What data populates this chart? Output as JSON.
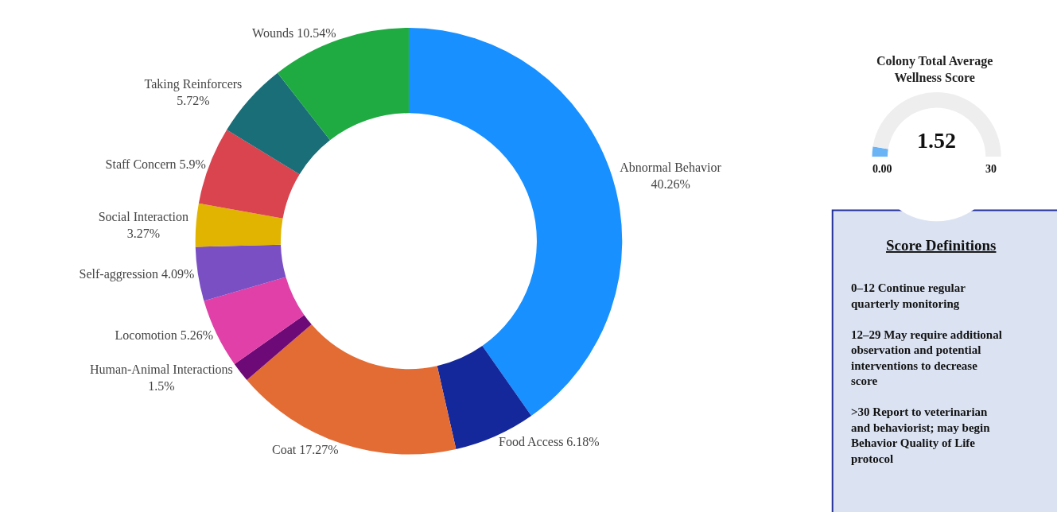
{
  "chart_data": [
    {
      "type": "donut",
      "categories": [
        "Abnormal Behavior",
        "Food Access",
        "Coat",
        "Human-Animal Interactions",
        "Locomotion",
        "Self-aggression",
        "Social Interaction",
        "Staff Concern",
        "Taking Reinforcers",
        "Wounds"
      ],
      "values": [
        40.26,
        6.18,
        17.27,
        1.5,
        5.26,
        4.09,
        3.27,
        5.9,
        5.72,
        10.54
      ],
      "value_labels": [
        "40.26%",
        "6.18%",
        "17.27%",
        "1.5%",
        "5.26%",
        "4.09%",
        "3.27%",
        "5.9%",
        "5.72%",
        "10.54%"
      ],
      "colors": [
        "#1890ff",
        "#14279b",
        "#e36c35",
        "#6e0a78",
        "#e040a8",
        "#7a4fc4",
        "#e0b400",
        "#d9444f",
        "#1a6e78",
        "#1fab42"
      ]
    },
    {
      "type": "donut",
      "title": "Colony Total Average Wellness Score",
      "categories": [
        null,
        null,
        null
      ],
      "values": [
        2.53,
        47.47,
        50
      ],
      "colors": [
        "#6ab4f5",
        "#eeeeee",
        "#ffffff"
      ],
      "annotations": [
        "1.52",
        "0.00",
        "30"
      ]
    },
    {
      "type": "other",
      "title": "Score Definitions",
      "annotations": [
        "0–12 Continue regular quarterly monitoring",
        "12–29 May require additional observation and potential interventions to decrease score",
        ">30 Report to veterinarian and behaviorist; may begin Behavior Quality of Life protocol"
      ]
    }
  ]
}
